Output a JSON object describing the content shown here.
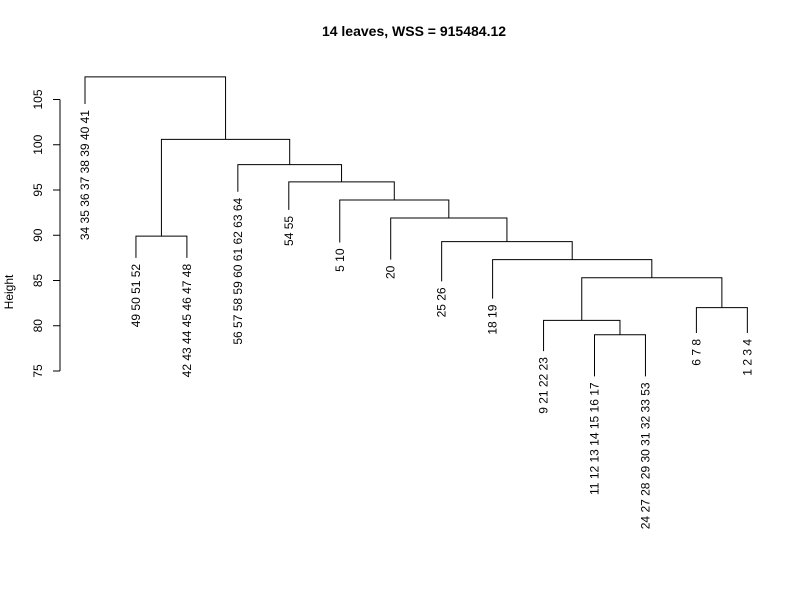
{
  "chart_data": {
    "type": "dendrogram",
    "title": "14 leaves, WSS = 915484.12",
    "ylabel": "Height",
    "xlabel": "",
    "yticks": [
      75,
      80,
      85,
      90,
      95,
      100,
      105
    ],
    "ylim": [
      75,
      110
    ],
    "grid": false,
    "leaves": [
      {
        "label": "34 35 36 37 38 39 40 41",
        "height": 104.5
      },
      {
        "label": "49 50 51 52",
        "height": 87.5
      },
      {
        "label": "42 43 44 45 46 47 48",
        "height": 87.5
      },
      {
        "label": "56 57 58 59 60 61 62 63 64",
        "height": 94.8
      },
      {
        "label": "54 55",
        "height": 92.8
      },
      {
        "label": "5 10",
        "height": 89.2
      },
      {
        "label": "20",
        "height": 87.3
      },
      {
        "label": "25 26",
        "height": 84.9
      },
      {
        "label": "18 19",
        "height": 83.0
      },
      {
        "label": "9 21 22 23",
        "height": 77.2
      },
      {
        "label": "11 12 13 14 15 16 17",
        "height": 74.4
      },
      {
        "label": "24 27 28 29 30 31 32 33 53",
        "height": 74.4
      },
      {
        "label": "6 7 8",
        "height": 79.2
      },
      {
        "label": "1 2 3 4",
        "height": 79.2
      }
    ],
    "merges": [
      {
        "left": "L10",
        "right": "L11",
        "height": 79.0
      },
      {
        "left": "L9",
        "right": "M0",
        "height": 80.6
      },
      {
        "left": "L12",
        "right": "L13",
        "height": 82.0
      },
      {
        "left": "M1",
        "right": "M2",
        "height": 85.3
      },
      {
        "left": "L8",
        "right": "M3",
        "height": 87.3
      },
      {
        "left": "L7",
        "right": "M4",
        "height": 89.3
      },
      {
        "left": "L6",
        "right": "M5",
        "height": 91.9
      },
      {
        "left": "L5",
        "right": "M6",
        "height": 93.9
      },
      {
        "left": "L4",
        "right": "M7",
        "height": 95.9
      },
      {
        "left": "L3",
        "right": "M8",
        "height": 97.8
      },
      {
        "left": "L1",
        "right": "L2",
        "height": 89.9
      },
      {
        "left": "M10",
        "right": "M9",
        "height": 100.6
      },
      {
        "left": "L0",
        "right": "M11",
        "height": 107.5
      }
    ]
  }
}
